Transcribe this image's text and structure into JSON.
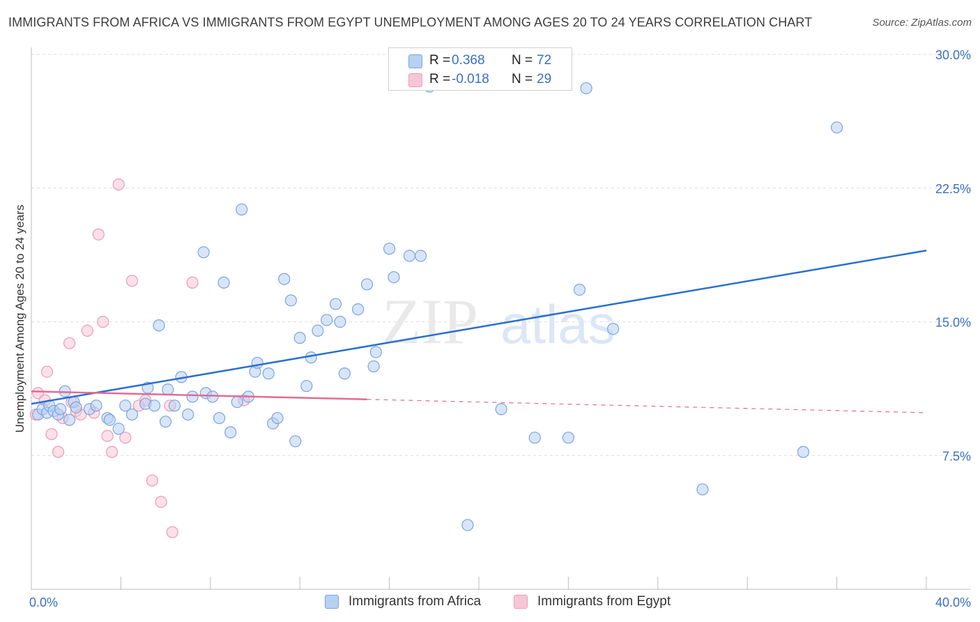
{
  "title": "IMMIGRANTS FROM AFRICA VS IMMIGRANTS FROM EGYPT UNEMPLOYMENT AMONG AGES 20 TO 24 YEARS CORRELATION CHART",
  "source": "Source: ZipAtlas.com",
  "watermark": {
    "zip": "ZIP",
    "atlas": "atlas"
  },
  "legend": {
    "africa": {
      "r_label": "R =",
      "r_value": "0.368",
      "n_label": "N =",
      "n_value": "72"
    },
    "egypt": {
      "r_label": "R =",
      "r_value": "-0.018",
      "n_label": "N =",
      "n_value": "29"
    }
  },
  "bottom_legend": {
    "africa": "Immigrants from Africa",
    "egypt": "Immigrants from Egypt"
  },
  "colors": {
    "africa_fill": "#b8d0f3",
    "africa_stroke": "#7aa4e0",
    "africa_line": "#2a6fcf",
    "egypt_fill": "#f7c6d6",
    "egypt_stroke": "#ee9ab6",
    "egypt_line": "#e46a95",
    "grid": "#dcdcdc",
    "tick_text": "#3a6fc4"
  },
  "chart_data": {
    "type": "scatter",
    "title": "IMMIGRANTS FROM AFRICA VS IMMIGRANTS FROM EGYPT UNEMPLOYMENT AMONG AGES 20 TO 24 YEARS CORRELATION CHART",
    "xlabel": "",
    "ylabel": "Unemployment Among Ages 20 to 24 years",
    "xlim": [
      0,
      40
    ],
    "ylim": [
      0,
      30
    ],
    "x_tick_labels": [
      "0.0%",
      "40.0%"
    ],
    "y_ticks": [
      7.5,
      15.0,
      22.5,
      30.0
    ],
    "y_tick_labels": [
      "7.5%",
      "15.0%",
      "22.5%",
      "30.0%"
    ],
    "grid": true,
    "legend_position": "top-center",
    "series": [
      {
        "name": "Immigrants from Africa",
        "points": [
          [
            0.3,
            9.8
          ],
          [
            0.5,
            10.1
          ],
          [
            0.7,
            9.9
          ],
          [
            0.8,
            10.3
          ],
          [
            1.0,
            10.0
          ],
          [
            1.2,
            9.8
          ],
          [
            1.3,
            10.1
          ],
          [
            1.5,
            11.1
          ],
          [
            1.7,
            9.5
          ],
          [
            1.9,
            10.5
          ],
          [
            2.0,
            10.2
          ],
          [
            2.6,
            10.1
          ],
          [
            2.9,
            10.3
          ],
          [
            3.4,
            9.6
          ],
          [
            3.5,
            9.5
          ],
          [
            3.9,
            9.0
          ],
          [
            4.2,
            10.3
          ],
          [
            4.5,
            9.8
          ],
          [
            5.1,
            10.4
          ],
          [
            5.2,
            11.3
          ],
          [
            5.5,
            10.3
          ],
          [
            5.7,
            14.8
          ],
          [
            6.0,
            9.4
          ],
          [
            6.1,
            11.2
          ],
          [
            6.4,
            10.3
          ],
          [
            6.7,
            11.9
          ],
          [
            7.0,
            9.8
          ],
          [
            7.2,
            10.8
          ],
          [
            7.7,
            18.9
          ],
          [
            7.8,
            11.0
          ],
          [
            8.1,
            10.8
          ],
          [
            8.4,
            9.6
          ],
          [
            8.6,
            17.2
          ],
          [
            8.9,
            8.8
          ],
          [
            9.2,
            10.5
          ],
          [
            9.4,
            21.3
          ],
          [
            9.7,
            10.8
          ],
          [
            10.0,
            12.2
          ],
          [
            10.1,
            12.7
          ],
          [
            10.6,
            12.1
          ],
          [
            10.8,
            9.3
          ],
          [
            11.0,
            9.6
          ],
          [
            11.3,
            17.4
          ],
          [
            11.6,
            16.2
          ],
          [
            11.8,
            8.3
          ],
          [
            12.0,
            14.1
          ],
          [
            12.3,
            11.4
          ],
          [
            12.5,
            13.0
          ],
          [
            12.8,
            14.5
          ],
          [
            13.2,
            15.1
          ],
          [
            13.6,
            16.0
          ],
          [
            13.8,
            15.0
          ],
          [
            14.0,
            12.1
          ],
          [
            14.6,
            15.7
          ],
          [
            15.0,
            17.1
          ],
          [
            15.3,
            12.5
          ],
          [
            15.4,
            13.3
          ],
          [
            16.0,
            19.1
          ],
          [
            16.2,
            17.5
          ],
          [
            16.9,
            18.7
          ],
          [
            17.4,
            18.7
          ],
          [
            17.8,
            28.2
          ],
          [
            19.5,
            3.6
          ],
          [
            21.0,
            10.1
          ],
          [
            22.5,
            8.5
          ],
          [
            24.0,
            8.5
          ],
          [
            24.5,
            16.8
          ],
          [
            24.8,
            28.1
          ],
          [
            26.0,
            14.6
          ],
          [
            30.0,
            5.6
          ],
          [
            34.5,
            7.7
          ],
          [
            36.0,
            25.9
          ]
        ]
      },
      {
        "name": "Immigrants from Egypt",
        "points": [
          [
            0.2,
            9.8
          ],
          [
            0.3,
            11.0
          ],
          [
            0.6,
            10.6
          ],
          [
            0.7,
            12.2
          ],
          [
            0.9,
            8.7
          ],
          [
            1.2,
            7.7
          ],
          [
            1.4,
            9.6
          ],
          [
            1.7,
            13.8
          ],
          [
            1.8,
            10.5
          ],
          [
            2.0,
            10.0
          ],
          [
            2.2,
            9.8
          ],
          [
            2.5,
            14.5
          ],
          [
            2.8,
            9.9
          ],
          [
            3.0,
            19.9
          ],
          [
            3.2,
            15.0
          ],
          [
            3.4,
            8.6
          ],
          [
            3.6,
            7.7
          ],
          [
            3.9,
            22.7
          ],
          [
            4.2,
            8.5
          ],
          [
            4.5,
            17.3
          ],
          [
            4.8,
            10.3
          ],
          [
            5.1,
            10.6
          ],
          [
            5.4,
            6.1
          ],
          [
            5.8,
            4.9
          ],
          [
            6.2,
            10.3
          ],
          [
            6.3,
            3.2
          ],
          [
            7.2,
            17.2
          ],
          [
            9.5,
            10.6
          ],
          [
            16.8,
            28.3
          ]
        ]
      }
    ],
    "trend_lines": [
      {
        "series": "Immigrants from Africa",
        "from": [
          0,
          10.4
        ],
        "to": [
          40,
          19.0
        ]
      },
      {
        "series": "Immigrants from Egypt",
        "from": [
          0,
          11.1
        ],
        "to": [
          40,
          9.9
        ],
        "solid_until_x": 15
      }
    ]
  }
}
